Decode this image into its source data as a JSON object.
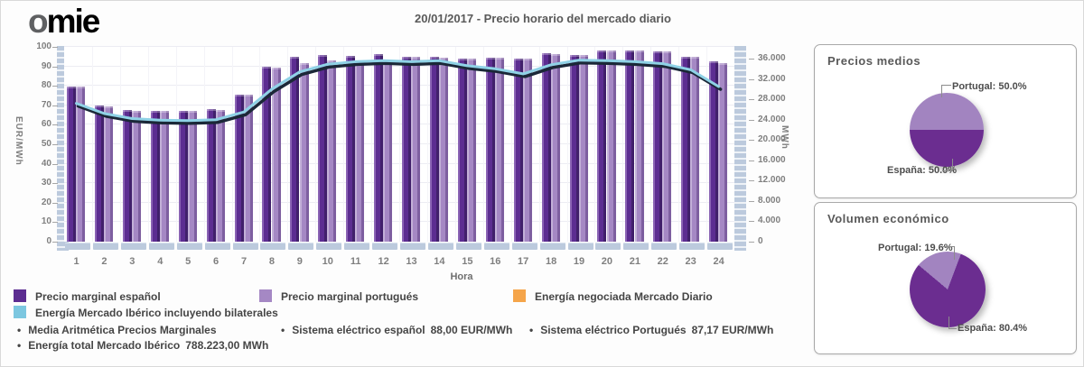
{
  "page": {
    "title": "20/01/2017 - Precio horario del mercado diario"
  },
  "logo": {
    "part1": "o",
    "part2": "m",
    "part3": "ie"
  },
  "chart_data": [
    {
      "id": "precio-horario-mercado-diario",
      "type": "bar",
      "title": "20/01/2017 - Precio horario del mercado diario",
      "x": [
        1,
        2,
        3,
        4,
        5,
        6,
        7,
        8,
        9,
        10,
        11,
        12,
        13,
        14,
        15,
        16,
        17,
        18,
        19,
        20,
        21,
        22,
        23,
        24
      ],
      "xlabel": "Hora",
      "grid": true,
      "legend_position": "bottom",
      "left_axis": {
        "label": "EUR/MWh",
        "range": [
          0,
          100
        ],
        "tick_step": 10,
        "tick_labels": [
          "0",
          "10",
          "20",
          "30",
          "40",
          "50",
          "60",
          "70",
          "80",
          "90",
          "100"
        ]
      },
      "right_axis": {
        "label": "MWh",
        "range": [
          0,
          36000
        ],
        "tick_step": 4000,
        "tick_labels": [
          "0",
          "4.000",
          "8.000",
          "12.000",
          "16.000",
          "20.000",
          "24.000",
          "28.000",
          "32.000",
          "36.000"
        ]
      },
      "series": [
        {
          "name": "Precio marginal español",
          "type": "bar",
          "axis": "left",
          "color": "#5c2d91",
          "values": [
            79.5,
            70,
            67.5,
            67,
            67,
            68,
            75.5,
            90,
            95,
            96,
            95.5,
            96.5,
            95,
            95,
            94,
            94.5,
            94,
            97,
            96,
            98,
            98,
            97.5,
            95,
            92.5
          ]
        },
        {
          "name": "Precio marginal portugués",
          "type": "bar",
          "axis": "left",
          "color": "#a588c4",
          "values": [
            79.5,
            69.5,
            67,
            67,
            67,
            67.5,
            75.5,
            89.5,
            91.5,
            93,
            92.5,
            93,
            95,
            94.5,
            94,
            94.5,
            94,
            96.5,
            96,
            98,
            98,
            97.5,
            95,
            91.5
          ]
        },
        {
          "name": "Energía negociada Mercado Diario",
          "type": "bar",
          "axis": "right",
          "color": "#f5a54a",
          "values": []
        },
        {
          "name": "Energía Mercado Ibérico incluyendo bilaterales",
          "type": "line",
          "axis": "right",
          "color": "#8fd2e6",
          "values": [
            27200,
            25200,
            24200,
            23900,
            23800,
            24000,
            25500,
            30000,
            33400,
            34900,
            35400,
            35600,
            35400,
            35600,
            34600,
            34000,
            33000,
            34800,
            35700,
            35600,
            35400,
            35000,
            33800,
            30500
          ]
        }
      ]
    },
    {
      "id": "precios-medios",
      "type": "pie",
      "title": "Precios medios",
      "start_deg": 270,
      "slices": [
        {
          "label": "Portugal",
          "value": 50.0,
          "display": "Portugal: 50.0%",
          "color": "#a284c0"
        },
        {
          "label": "España",
          "value": 50.0,
          "display": "España: 50.0%",
          "color": "#6b2d90"
        }
      ]
    },
    {
      "id": "volumen-economico",
      "type": "pie",
      "title": "Volumen económico",
      "start_deg": 310,
      "slices": [
        {
          "label": "Portugal",
          "value": 19.6,
          "display": "Portugal: 19.6%",
          "color": "#a284c0"
        },
        {
          "label": "España",
          "value": 80.4,
          "display": "España: 80.4%",
          "color": "#6b2d90"
        }
      ]
    }
  ],
  "legend": {
    "items": [
      {
        "label": "Precio marginal español",
        "color": "#5c2d91"
      },
      {
        "label": "Precio marginal portugués",
        "color": "#a588c4"
      },
      {
        "label": "Energía negociada Mercado Diario",
        "color": "#f5a54a"
      },
      {
        "label": "Energía Mercado Ibérico incluyendo bilaterales",
        "color": "#7cc7e0"
      }
    ]
  },
  "stats": [
    {
      "label": "Media Aritmética Precios Marginales",
      "value": ""
    },
    {
      "label": "Sistema eléctrico español",
      "value": "88,00 EUR/MWh"
    },
    {
      "label": "Sistema eléctrico Portugués",
      "value": "87,17 EUR/MWh"
    },
    {
      "label": "Energía total Mercado Ibérico",
      "value": "788.223,00 MWh"
    }
  ]
}
